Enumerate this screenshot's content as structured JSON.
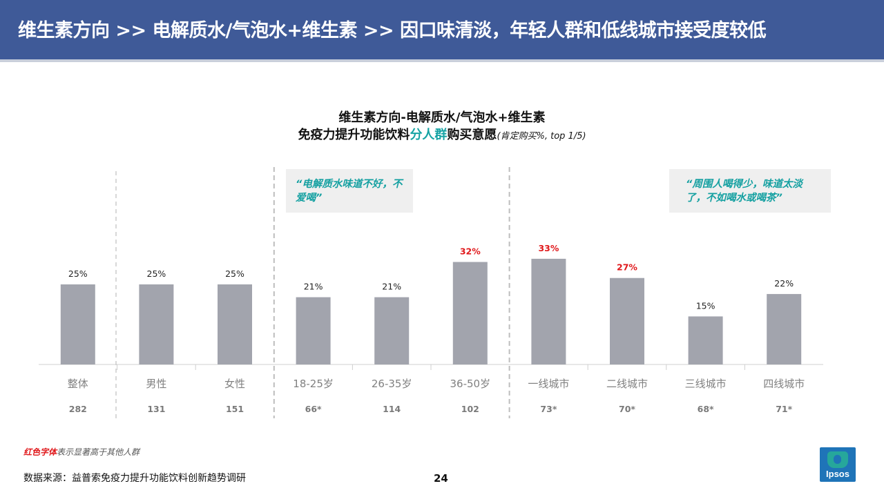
{
  "header": {
    "title": "维生素方向 >> 电解质水/气泡水+维生素 >> 因口味清淡，年轻人群和低线城市接受度较低"
  },
  "chart_title": {
    "line1": "维生素方向-电解质水/气泡水+维生素",
    "line2_pre": "免疫力提升功能饮料",
    "line2_highlight": "分人群",
    "line2_post": "购买意愿",
    "line2_note": "(肯定购买%, top 1/5)"
  },
  "quotes": {
    "q1": "“电解质水味道不好，不爱喝”",
    "q2": "“周围人喝得少，味道太淡了，不如喝水或喝茶”"
  },
  "legend": {
    "red_label": "红色字体",
    "rest": "表示显著高于其他人群"
  },
  "source": "数据来源：益普索免疫力提升功能饮料创新趋势调研",
  "page_number": "24",
  "logo_text": "Ipsos",
  "colors": {
    "header_bg": "#3f5a98",
    "bar": "#a2a4ad",
    "highlight_label": "#e0181b",
    "accent_teal": "#16a3a4"
  },
  "chart_data": {
    "type": "bar",
    "categories": [
      "整体",
      "男性",
      "女性",
      "18-25岁",
      "26-35岁",
      "36-50岁",
      "一线城市",
      "二线城市",
      "三线城市",
      "四线城市"
    ],
    "values": [
      25,
      25,
      25,
      21,
      21,
      32,
      33,
      27,
      15,
      22
    ],
    "value_labels": [
      "25%",
      "25%",
      "25%",
      "21%",
      "21%",
      "32%",
      "33%",
      "27%",
      "15%",
      "22%"
    ],
    "significant": [
      false,
      false,
      false,
      false,
      false,
      true,
      true,
      true,
      false,
      false
    ],
    "sample_sizes": [
      "282",
      "131",
      "151",
      "66*",
      "114",
      "102",
      "73*",
      "70*",
      "68*",
      "71*"
    ],
    "ylim": [
      0,
      40
    ],
    "grid": false
  }
}
